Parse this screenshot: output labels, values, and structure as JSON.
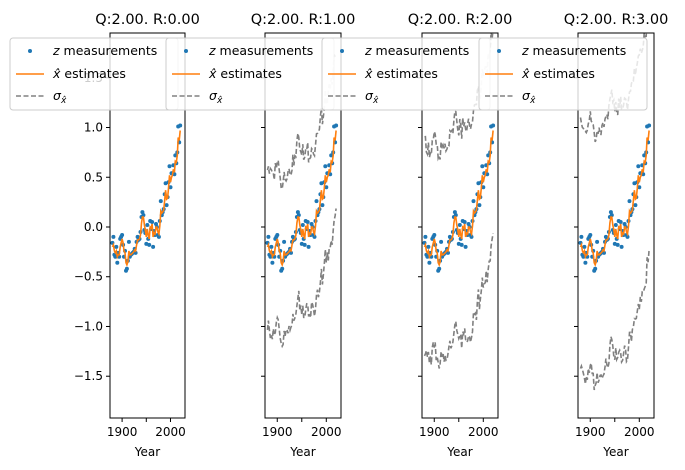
{
  "colors": {
    "measurements": "#1f77b4",
    "estimates": "#ff7f0e",
    "sigma": "#808080"
  },
  "chart_data": [
    {
      "type": "line",
      "title": "Q:2.00. R:0.00",
      "xlabel": "Year",
      "xlim": [
        1875,
        2030
      ],
      "ylim": [
        -1.92,
        1.95
      ],
      "xticks": [
        1900,
        1950,
        2000
      ],
      "xtick_labels": [
        "1900",
        "",
        "2000"
      ],
      "yticks": [
        -1.5,
        -1.0,
        -0.5,
        0.0,
        0.5,
        1.0,
        1.5
      ],
      "ytick_labels": [
        "−1.5",
        "−1.0",
        "−0.5",
        "0.0",
        "0.5",
        "1.0",
        "1.5"
      ],
      "sigma_offset": 0.0,
      "legend": {
        "placement": "top-left",
        "entries": [
          "z measurements",
          "x̂ estimates",
          "σx̂"
        ]
      }
    },
    {
      "type": "line",
      "title": "Q:2.00. R:1.00",
      "xlabel": "Year",
      "xlim": [
        1875,
        2030
      ],
      "ylim": [
        -1.92,
        1.95
      ],
      "xticks": [
        1900,
        1950,
        2000
      ],
      "xtick_labels": [
        "1900",
        "",
        "2000"
      ],
      "sigma_offset": 0.8,
      "legend": {
        "placement": "top-left",
        "entries": [
          "z measurements",
          "x̂ estimates",
          "σx̂"
        ]
      }
    },
    {
      "type": "line",
      "title": "Q:2.00. R:2.00",
      "xlabel": "Year",
      "xlim": [
        1875,
        2030
      ],
      "ylim": [
        -1.92,
        1.95
      ],
      "xticks": [
        1900,
        1950,
        2000
      ],
      "xtick_labels": [
        "1900",
        "",
        "2000"
      ],
      "sigma_offset": 1.05,
      "legend": {
        "placement": "top-left",
        "entries": [
          "z measurements",
          "x̂ estimates",
          "σx̂"
        ]
      }
    },
    {
      "type": "line",
      "title": "Q:2.00. R:3.00",
      "xlabel": "Year",
      "xlim": [
        1875,
        2030
      ],
      "ylim": [
        -1.92,
        1.95
      ],
      "xticks": [
        1900,
        1950,
        2000
      ],
      "xtick_labels": [
        "1900",
        "",
        "2000"
      ],
      "sigma_offset": 1.25,
      "legend": {
        "placement": "top-left",
        "entries": [
          "z measurements",
          "x̂ estimates",
          "σx̂"
        ]
      }
    }
  ],
  "series": {
    "x": [
      1880,
      1882,
      1884,
      1886,
      1888,
      1890,
      1892,
      1894,
      1896,
      1898,
      1900,
      1902,
      1904,
      1906,
      1908,
      1910,
      1912,
      1914,
      1916,
      1918,
      1920,
      1922,
      1924,
      1926,
      1928,
      1930,
      1932,
      1934,
      1936,
      1938,
      1940,
      1942,
      1944,
      1946,
      1948,
      1950,
      1952,
      1954,
      1956,
      1958,
      1960,
      1962,
      1964,
      1966,
      1968,
      1970,
      1972,
      1974,
      1976,
      1978,
      1980,
      1982,
      1984,
      1986,
      1988,
      1990,
      1992,
      1994,
      1996,
      1998,
      2000,
      2002,
      2004,
      2006,
      2008,
      2010,
      2012,
      2014,
      2016,
      2018,
      2020
    ],
    "z": [
      -0.16,
      -0.1,
      -0.28,
      -0.3,
      -0.2,
      -0.36,
      -0.26,
      -0.3,
      -0.12,
      -0.1,
      -0.08,
      -0.18,
      -0.3,
      -0.24,
      -0.44,
      -0.42,
      -0.34,
      -0.15,
      -0.3,
      -0.28,
      -0.27,
      -0.26,
      -0.25,
      -0.22,
      -0.26,
      -0.15,
      -0.1,
      -0.13,
      -0.12,
      -0.05,
      0.1,
      0.15,
      0.12,
      -0.03,
      -0.06,
      -0.17,
      0.02,
      -0.12,
      -0.18,
      0.06,
      -0.02,
      0.05,
      -0.2,
      -0.04,
      -0.08,
      0.03,
      0.0,
      -0.08,
      -0.1,
      0.06,
      0.26,
      0.12,
      0.15,
      0.18,
      0.33,
      0.44,
      0.22,
      0.3,
      0.45,
      0.61,
      0.4,
      0.54,
      0.54,
      0.62,
      0.53,
      0.72,
      0.64,
      0.75,
      1.01,
      0.85,
      1.02
    ],
    "x_hat": [
      -0.2,
      -0.18,
      -0.24,
      -0.26,
      -0.24,
      -0.3,
      -0.28,
      -0.28,
      -0.2,
      -0.16,
      -0.12,
      -0.16,
      -0.24,
      -0.26,
      -0.36,
      -0.38,
      -0.35,
      -0.24,
      -0.28,
      -0.28,
      -0.27,
      -0.26,
      -0.25,
      -0.23,
      -0.24,
      -0.18,
      -0.13,
      -0.13,
      -0.12,
      -0.08,
      0.04,
      0.1,
      0.1,
      0.02,
      -0.03,
      -0.1,
      -0.02,
      -0.08,
      -0.12,
      0.0,
      -0.01,
      0.03,
      -0.1,
      -0.06,
      -0.07,
      0.0,
      0.0,
      -0.05,
      -0.07,
      0.01,
      0.16,
      0.14,
      0.15,
      0.17,
      0.27,
      0.37,
      0.28,
      0.29,
      0.39,
      0.52,
      0.45,
      0.5,
      0.52,
      0.58,
      0.55,
      0.66,
      0.65,
      0.72,
      0.9,
      0.87,
      0.97
    ]
  }
}
